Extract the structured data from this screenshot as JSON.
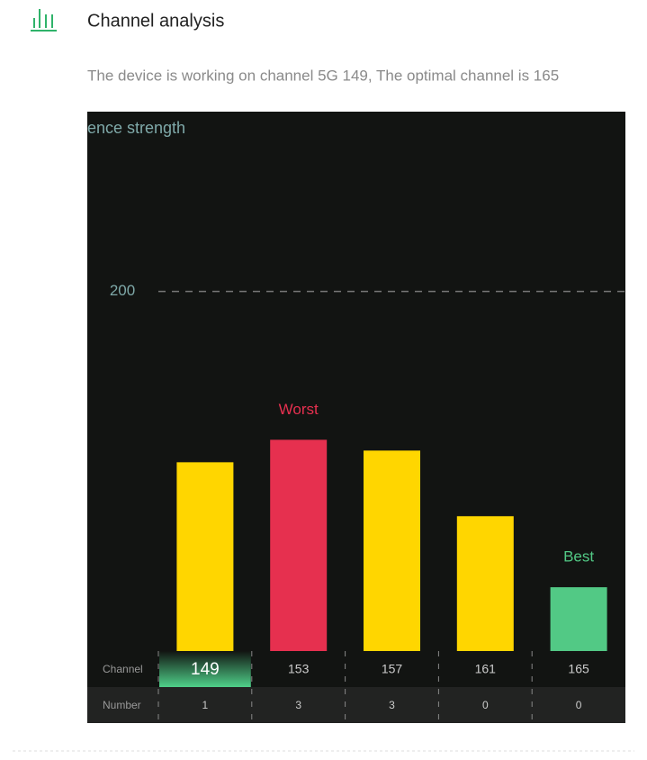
{
  "header": {
    "title": "Channel analysis",
    "description": "The device is working on channel 5G 149, The optimal channel is 165"
  },
  "chart_data": {
    "type": "bar",
    "y_label": "ence strength",
    "categories": [
      "149",
      "153",
      "157",
      "161",
      "165"
    ],
    "values": [
      105,
      117.5,
      111.5,
      75,
      35.5
    ],
    "colors": [
      "#ffd600",
      "#e6304f",
      "#ffd600",
      "#ffd600",
      "#52c985"
    ],
    "ylim": [
      0,
      300
    ],
    "yticks": [
      200
    ],
    "grid": true,
    "selected_category": "149",
    "row_labels": [
      "Channel",
      "Number"
    ],
    "counts": [
      1,
      3,
      3,
      0,
      0
    ],
    "annotations": [
      {
        "text": "Worst",
        "category": "153",
        "color": "#e6304f"
      },
      {
        "text": "Best",
        "category": "165",
        "color": "#52c985"
      }
    ]
  }
}
